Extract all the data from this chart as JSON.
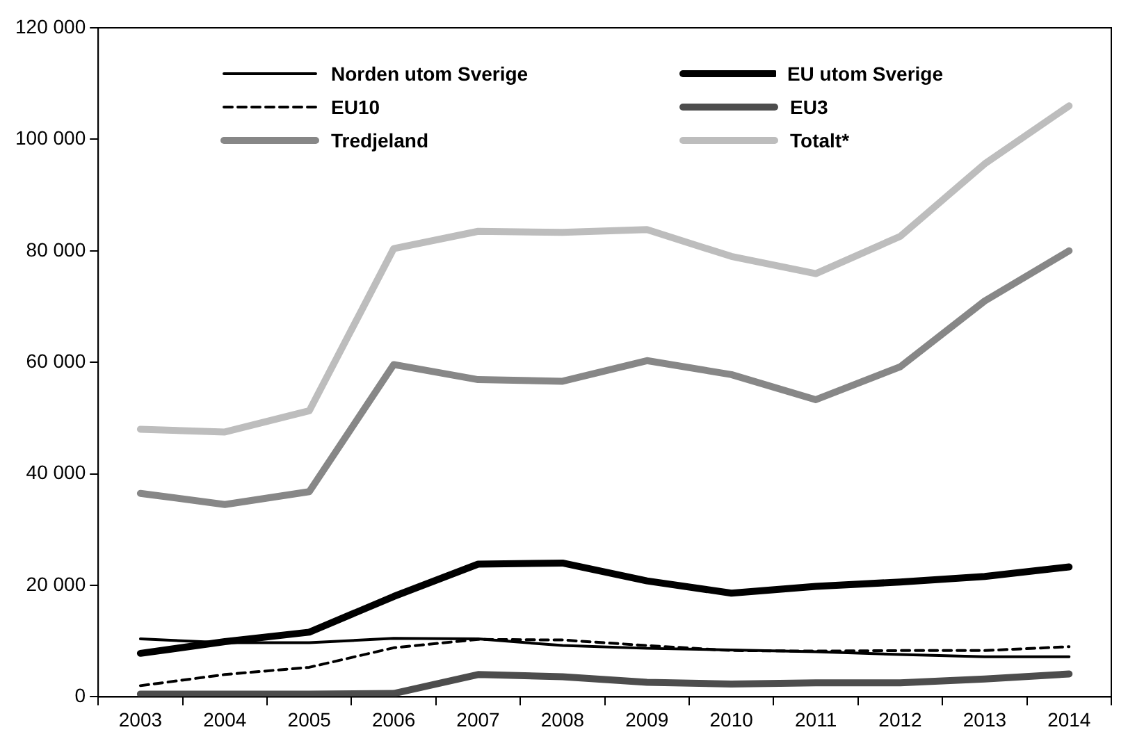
{
  "chart_data": {
    "type": "line",
    "categories": [
      "2003",
      "2004",
      "2005",
      "2006",
      "2007",
      "2008",
      "2009",
      "2010",
      "2011",
      "2012",
      "2013",
      "2014"
    ],
    "series": [
      {
        "name": "Norden utom Sverige",
        "color": "#000000",
        "line_style": "solid",
        "values": [
          10400,
          9700,
          9700,
          10500,
          10400,
          9200,
          8700,
          8400,
          8100,
          7600,
          7200,
          7200
        ]
      },
      {
        "name": "EU utom Sverige",
        "color": "#000000",
        "line_style": "solid",
        "values": [
          7800,
          9900,
          11600,
          18000,
          23800,
          24000,
          20800,
          18600,
          19800,
          20600,
          21600,
          23300
        ]
      },
      {
        "name": "EU10",
        "color": "#000000",
        "line_style": "dashed",
        "values": [
          2000,
          4000,
          5300,
          8800,
          10300,
          10200,
          9200,
          8300,
          8200,
          8300,
          8300,
          9000
        ]
      },
      {
        "name": "EU3",
        "color": "#4d4d4d",
        "line_style": "solid",
        "values": [
          500,
          500,
          500,
          600,
          4000,
          3600,
          2600,
          2300,
          2500,
          2500,
          3200,
          4100
        ]
      },
      {
        "name": "Tredjeland",
        "color": "#878787",
        "line_style": "solid",
        "values": [
          36500,
          34500,
          36800,
          59600,
          56900,
          56600,
          60300,
          57800,
          53300,
          59200,
          71000,
          80000
        ]
      },
      {
        "name": "Totalt*",
        "color": "#bdbdbd",
        "line_style": "solid",
        "values": [
          48000,
          47500,
          51300,
          80400,
          83500,
          83300,
          83800,
          79000,
          75900,
          82600,
          95600,
          106000
        ]
      }
    ],
    "ylim": [
      0,
      120000
    ],
    "yticks": [
      {
        "value": 0,
        "label": "0"
      },
      {
        "value": 20000,
        "label": "20 000"
      },
      {
        "value": 40000,
        "label": "40 000"
      },
      {
        "value": 60000,
        "label": "60 000"
      },
      {
        "value": 80000,
        "label": "80 000"
      },
      {
        "value": 100000,
        "label": "100 000"
      },
      {
        "value": 120000,
        "label": "120 000"
      }
    ],
    "grid": false,
    "legend": "top",
    "marker": "none"
  }
}
